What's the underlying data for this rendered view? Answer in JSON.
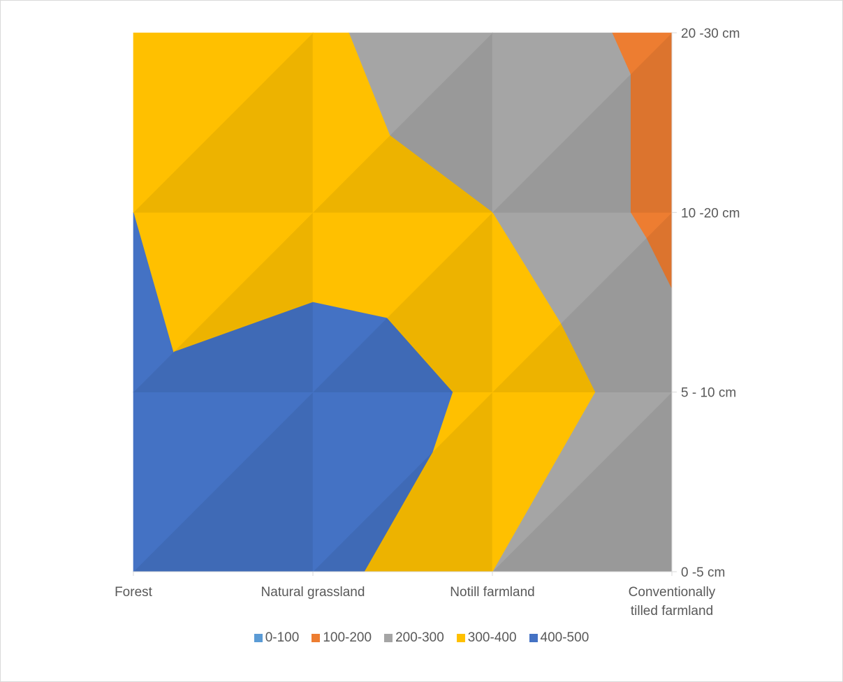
{
  "chart_data": {
    "type": "area",
    "subtype": "surface-contour",
    "title": "",
    "xlabel": "",
    "ylabel": "",
    "categories": [
      "Forest",
      "Natural grassland",
      "Notill farmland",
      "Conventionally tilled farmland"
    ],
    "depth_axis": {
      "position": "right",
      "labels": [
        "0 -5 cm",
        "5 - 10 cm",
        "10 -20 cm",
        "20 -30 cm"
      ]
    },
    "values": [
      [
        470,
        440,
        300,
        230
      ],
      [
        420,
        470,
        380,
        240
      ],
      [
        400,
        330,
        300,
        170
      ],
      [
        330,
        310,
        260,
        170
      ]
    ],
    "bands": [
      {
        "name": "0-100",
        "color": "#5b9bd5"
      },
      {
        "name": "100-200",
        "color": "#ed7d31"
      },
      {
        "name": "200-300",
        "color": "#a5a5a5"
      },
      {
        "name": "300-400",
        "color": "#ffc000"
      },
      {
        "name": "400-500",
        "color": "#4472c4"
      }
    ],
    "legend_position": "bottom",
    "grid": false
  }
}
